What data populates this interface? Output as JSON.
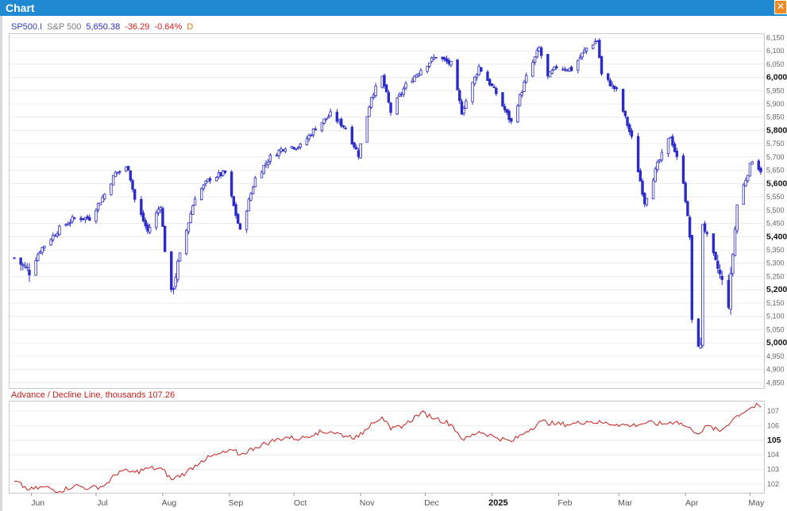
{
  "window": {
    "title": "Chart",
    "close_icon": "close-icon"
  },
  "price_legend": {
    "symbol": "SP500.I",
    "name": "S&P 500",
    "last": "5,650.38",
    "change": "-36.29",
    "change_pct": "-0.64%",
    "period": "D",
    "colors": {
      "symbol": "#3340c0",
      "name": "#7a7a7a",
      "last": "#2b2bb8",
      "change": "#d42020",
      "period": "#e07010"
    }
  },
  "breadth_legend": {
    "label": "Advance / Decline Line, thousands 107.26",
    "color": "#c81e1e"
  },
  "price_axis": {
    "ticks": [
      "6,150",
      "6,100",
      "6,050",
      "6,000",
      "5,950",
      "5,900",
      "5,850",
      "5,800",
      "5,750",
      "5,700",
      "5,650",
      "5,600",
      "5,550",
      "5,500",
      "5,450",
      "5,400",
      "5,350",
      "5,300",
      "5,250",
      "5,200",
      "5,150",
      "5,100",
      "5,050",
      "5,000",
      "4,950",
      "4,900",
      "4,850"
    ],
    "bold": [
      "6,000",
      "5,800",
      "5,600",
      "5,400",
      "5,200",
      "5,000"
    ]
  },
  "breadth_axis": {
    "ticks": [
      "107",
      "106",
      "105",
      "104",
      "103",
      "102"
    ],
    "bold": [
      "105"
    ]
  },
  "x_axis": {
    "labels": [
      "Jun",
      "Jul",
      "Aug",
      "Sep",
      "Oct",
      "Nov",
      "Dec",
      "2025",
      "Feb",
      "Mar",
      "Apr",
      "May"
    ],
    "bold": [
      "2025"
    ]
  },
  "chart_data": [
    {
      "type": "candlestick",
      "title": "S&P 500 (SP500.I) daily",
      "series_name": "S&P 500",
      "ylim": [
        4830,
        6160
      ],
      "color": "#2b2bc8",
      "anchors": [
        [
          "2024-05-24",
          5320
        ],
        [
          "2024-05-31",
          5270
        ],
        [
          "2024-06-05",
          5350
        ],
        [
          "2024-06-14",
          5430
        ],
        [
          "2024-06-21",
          5470
        ],
        [
          "2024-06-28",
          5470
        ],
        [
          "2024-07-05",
          5560
        ],
        [
          "2024-07-10",
          5640
        ],
        [
          "2024-07-16",
          5660
        ],
        [
          "2024-07-19",
          5540
        ],
        [
          "2024-07-25",
          5420
        ],
        [
          "2024-07-31",
          5520
        ],
        [
          "2024-08-02",
          5350
        ],
        [
          "2024-08-05",
          5180
        ],
        [
          "2024-08-09",
          5330
        ],
        [
          "2024-08-16",
          5550
        ],
        [
          "2024-08-23",
          5620
        ],
        [
          "2024-08-30",
          5640
        ],
        [
          "2024-09-06",
          5420
        ],
        [
          "2024-09-13",
          5620
        ],
        [
          "2024-09-20",
          5700
        ],
        [
          "2024-09-27",
          5740
        ],
        [
          "2024-10-04",
          5740
        ],
        [
          "2024-10-11",
          5810
        ],
        [
          "2024-10-18",
          5860
        ],
        [
          "2024-10-25",
          5810
        ],
        [
          "2024-10-31",
          5710
        ],
        [
          "2024-11-06",
          5930
        ],
        [
          "2024-11-11",
          6000
        ],
        [
          "2024-11-15",
          5870
        ],
        [
          "2024-11-22",
          5970
        ],
        [
          "2024-11-29",
          6030
        ],
        [
          "2024-12-06",
          6080
        ],
        [
          "2024-12-13",
          6050
        ],
        [
          "2024-12-18",
          5870
        ],
        [
          "2024-12-26",
          6040
        ],
        [
          "2025-01-03",
          5940
        ],
        [
          "2025-01-10",
          5830
        ],
        [
          "2025-01-17",
          6000
        ],
        [
          "2025-01-23",
          6110
        ],
        [
          "2025-01-27",
          6000
        ],
        [
          "2025-01-31",
          6040
        ],
        [
          "2025-02-07",
          6030
        ],
        [
          "2025-02-14",
          6110
        ],
        [
          "2025-02-19",
          6140
        ],
        [
          "2025-02-21",
          6010
        ],
        [
          "2025-02-28",
          5950
        ],
        [
          "2025-03-07",
          5770
        ],
        [
          "2025-03-13",
          5530
        ],
        [
          "2025-03-19",
          5670
        ],
        [
          "2025-03-25",
          5780
        ],
        [
          "2025-03-31",
          5610
        ],
        [
          "2025-04-03",
          5400
        ],
        [
          "2025-04-04",
          5070
        ],
        [
          "2025-04-08",
          4980
        ],
        [
          "2025-04-09",
          5450
        ],
        [
          "2025-04-16",
          5280
        ],
        [
          "2025-04-21",
          5150
        ],
        [
          "2025-04-25",
          5520
        ],
        [
          "2025-05-02",
          5690
        ],
        [
          "2025-05-06",
          5650
        ]
      ]
    },
    {
      "type": "line",
      "title": "Advance / Decline Line, thousands",
      "series_name": "Advance / Decline Line",
      "ylim": [
        101.4,
        107.6
      ],
      "color": "#c81e1e",
      "points": [
        [
          "2024-05-24",
          102.2
        ],
        [
          "2024-05-31",
          101.6
        ],
        [
          "2024-06-07",
          101.8
        ],
        [
          "2024-06-14",
          101.5
        ],
        [
          "2024-06-21",
          101.9
        ],
        [
          "2024-06-28",
          101.7
        ],
        [
          "2024-07-05",
          101.9
        ],
        [
          "2024-07-12",
          102.9
        ],
        [
          "2024-07-19",
          102.8
        ],
        [
          "2024-07-26",
          103.1
        ],
        [
          "2024-08-01",
          103.0
        ],
        [
          "2024-08-05",
          102.3
        ],
        [
          "2024-08-12",
          102.8
        ],
        [
          "2024-08-19",
          103.6
        ],
        [
          "2024-08-26",
          104.0
        ],
        [
          "2024-09-03",
          104.3
        ],
        [
          "2024-09-06",
          104.0
        ],
        [
          "2024-09-13",
          104.5
        ],
        [
          "2024-09-20",
          104.9
        ],
        [
          "2024-09-27",
          105.2
        ],
        [
          "2024-10-04",
          105.1
        ],
        [
          "2024-10-11",
          105.5
        ],
        [
          "2024-10-18",
          105.6
        ],
        [
          "2024-10-25",
          105.3
        ],
        [
          "2024-10-31",
          105.2
        ],
        [
          "2024-11-06",
          106.2
        ],
        [
          "2024-11-11",
          106.6
        ],
        [
          "2024-11-15",
          105.7
        ],
        [
          "2024-11-22",
          106.1
        ],
        [
          "2024-11-29",
          106.9
        ],
        [
          "2024-12-06",
          106.5
        ],
        [
          "2024-12-13",
          106.1
        ],
        [
          "2024-12-19",
          105.0
        ],
        [
          "2024-12-26",
          105.6
        ],
        [
          "2025-01-03",
          105.2
        ],
        [
          "2025-01-10",
          104.9
        ],
        [
          "2025-01-17",
          105.6
        ],
        [
          "2025-01-24",
          106.3
        ],
        [
          "2025-01-31",
          106.1
        ],
        [
          "2025-02-07",
          106.1
        ],
        [
          "2025-02-14",
          106.3
        ],
        [
          "2025-02-21",
          106.2
        ],
        [
          "2025-02-28",
          106.1
        ],
        [
          "2025-03-07",
          106.0
        ],
        [
          "2025-03-14",
          106.2
        ],
        [
          "2025-03-21",
          106.1
        ],
        [
          "2025-03-28",
          106.3
        ],
        [
          "2025-04-04",
          105.7
        ],
        [
          "2025-04-08",
          105.5
        ],
        [
          "2025-04-11",
          106.0
        ],
        [
          "2025-04-17",
          105.6
        ],
        [
          "2025-04-25",
          106.7
        ],
        [
          "2025-05-01",
          107.2
        ],
        [
          "2025-05-05",
          107.4
        ],
        [
          "2025-05-06",
          107.26
        ]
      ]
    }
  ]
}
